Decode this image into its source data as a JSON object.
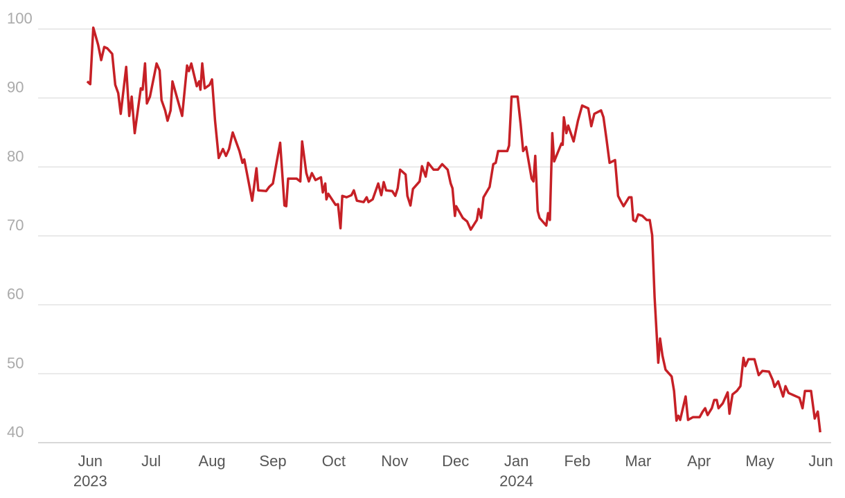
{
  "chart_data": {
    "type": "line",
    "series": [
      {
        "color": "#c62026",
        "x": [
          -0.05,
          0,
          0.05,
          0.13,
          0.18,
          0.23,
          0.28,
          0.36,
          0.41,
          0.46,
          0.5,
          0.59,
          0.64,
          0.68,
          0.73,
          0.83,
          0.86,
          0.9,
          0.93,
          0.98,
          1.09,
          1.14,
          1.17,
          1.23,
          1.27,
          1.32,
          1.35,
          1.51,
          1.59,
          1.62,
          1.66,
          1.75,
          1.79,
          1.81,
          1.84,
          1.88,
          1.96,
          2.0,
          2.05,
          2.11,
          2.18,
          2.23,
          2.28,
          2.34,
          2.45,
          2.5,
          2.53,
          2.66,
          2.73,
          2.76,
          2.89,
          2.94,
          3.0,
          3.05,
          3.12,
          3.19,
          3.22,
          3.25,
          3.39,
          3.45,
          3.48,
          3.55,
          3.59,
          3.64,
          3.7,
          3.79,
          3.82,
          3.86,
          3.88,
          3.91,
          4.03,
          4.07,
          4.11,
          4.14,
          4.21,
          4.29,
          4.33,
          4.38,
          4.49,
          4.54,
          4.57,
          4.64,
          4.73,
          4.78,
          4.82,
          4.86,
          4.96,
          5.01,
          5.05,
          5.09,
          5.18,
          5.21,
          5.26,
          5.3,
          5.41,
          5.45,
          5.51,
          5.55,
          5.64,
          5.71,
          5.78,
          5.87,
          5.92,
          5.95,
          5.99,
          6.01,
          6.12,
          6.19,
          6.25,
          6.35,
          6.38,
          6.42,
          6.46,
          6.56,
          6.62,
          6.66,
          6.7,
          6.85,
          6.88,
          6.92,
          7.02,
          7.07,
          7.11,
          7.16,
          7.25,
          7.28,
          7.31,
          7.35,
          7.38,
          7.49,
          7.52,
          7.55,
          7.59,
          7.62,
          7.74,
          7.76,
          7.78,
          7.82,
          7.85,
          7.94,
          8.01,
          8.08,
          8.18,
          8.23,
          8.28,
          8.39,
          8.43,
          8.48,
          8.53,
          8.62,
          8.67,
          8.71,
          8.76,
          8.85,
          8.89,
          8.92,
          8.96,
          9.0,
          9.07,
          9.14,
          9.19,
          9.23,
          9.27,
          9.33,
          9.36,
          9.4,
          9.45,
          9.55,
          9.59,
          9.63,
          9.66,
          9.69,
          9.78,
          9.82,
          9.9,
          10.01,
          10.06,
          10.1,
          10.14,
          10.21,
          10.25,
          10.29,
          10.32,
          10.39,
          10.47,
          10.5,
          10.55,
          10.62,
          10.68,
          10.73,
          10.76,
          10.81,
          10.91,
          10.98,
          11.04,
          11.15,
          11.21,
          11.24,
          11.3,
          11.38,
          11.42,
          11.47,
          11.65,
          11.7,
          11.74,
          11.84,
          11.9,
          11.95,
          11.99
        ],
        "values": [
          92.4,
          92.0,
          100.2,
          97.7,
          95.5,
          97.4,
          97.2,
          96.4,
          91.9,
          90.7,
          87.7,
          94.5,
          87.4,
          90.2,
          84.9,
          91.4,
          91.2,
          95.0,
          89.2,
          90.2,
          95.0,
          94.0,
          89.7,
          88.2,
          86.7,
          88.2,
          92.4,
          87.4,
          94.7,
          93.9,
          95.0,
          91.7,
          92.4,
          91.2,
          95.0,
          91.4,
          91.9,
          92.7,
          86.7,
          81.3,
          82.6,
          81.6,
          82.6,
          85.0,
          82.3,
          80.6,
          81.1,
          75.1,
          79.8,
          76.6,
          76.5,
          77.1,
          77.6,
          80.1,
          83.5,
          74.4,
          74.3,
          78.3,
          78.3,
          77.9,
          83.7,
          79.1,
          77.9,
          79.1,
          78.1,
          78.5,
          76.3,
          77.6,
          75.3,
          76.1,
          74.5,
          74.6,
          71.1,
          75.8,
          75.6,
          75.9,
          76.6,
          75.1,
          74.9,
          75.6,
          74.9,
          75.3,
          77.6,
          75.9,
          77.8,
          76.6,
          76.5,
          75.8,
          76.9,
          79.6,
          78.9,
          75.8,
          74.4,
          76.8,
          77.9,
          80.1,
          78.6,
          80.6,
          79.6,
          79.6,
          80.4,
          79.6,
          77.6,
          76.9,
          72.9,
          74.3,
          72.6,
          72.1,
          70.9,
          72.3,
          73.9,
          72.6,
          75.6,
          77.1,
          80.4,
          80.6,
          82.3,
          82.3,
          83.1,
          90.2,
          90.2,
          86.2,
          82.3,
          82.9,
          78.3,
          77.9,
          81.6,
          73.6,
          72.6,
          71.5,
          73.3,
          72.3,
          84.9,
          80.8,
          83.4,
          83.2,
          87.2,
          84.9,
          86.0,
          83.7,
          86.7,
          88.9,
          88.5,
          85.9,
          87.7,
          88.2,
          87.2,
          84.0,
          80.6,
          81.0,
          75.8,
          75.1,
          74.3,
          75.6,
          75.6,
          72.3,
          72.1,
          73.1,
          72.9,
          72.3,
          72.3,
          70.1,
          61.1,
          51.6,
          55.1,
          52.6,
          50.6,
          49.6,
          47.5,
          43.2,
          43.9,
          43.3,
          46.7,
          43.3,
          43.7,
          43.7,
          44.5,
          45.0,
          44.0,
          45.0,
          46.2,
          46.2,
          45.0,
          45.7,
          47.3,
          44.2,
          47.0,
          47.5,
          48.2,
          52.3,
          51.1,
          52.1,
          52.1,
          49.8,
          50.4,
          50.3,
          49.1,
          48.1,
          48.9,
          46.7,
          48.2,
          47.2,
          46.5,
          45.0,
          47.5,
          47.5,
          43.5,
          44.5,
          41.5
        ]
      }
    ],
    "xlim": [
      -0.8,
      12.17
    ],
    "xticks": [
      {
        "value": 0,
        "label": "Jun"
      },
      {
        "value": 1,
        "label": "Jul"
      },
      {
        "value": 2,
        "label": "Aug"
      },
      {
        "value": 3,
        "label": "Sep"
      },
      {
        "value": 4,
        "label": "Oct"
      },
      {
        "value": 5,
        "label": "Nov"
      },
      {
        "value": 6,
        "label": "Dec"
      },
      {
        "value": 7,
        "label": "Jan"
      },
      {
        "value": 8,
        "label": "Feb"
      },
      {
        "value": 9,
        "label": "Mar"
      },
      {
        "value": 10,
        "label": "Apr"
      },
      {
        "value": 11,
        "label": "May"
      },
      {
        "value": 12,
        "label": "Jun"
      }
    ],
    "year_labels": [
      {
        "value": 0,
        "label": "2023"
      },
      {
        "value": 7,
        "label": "2024"
      }
    ],
    "ylim": [
      40,
      100
    ],
    "yticks": [
      40,
      50,
      60,
      70,
      80,
      90,
      100
    ],
    "grid": true
  }
}
